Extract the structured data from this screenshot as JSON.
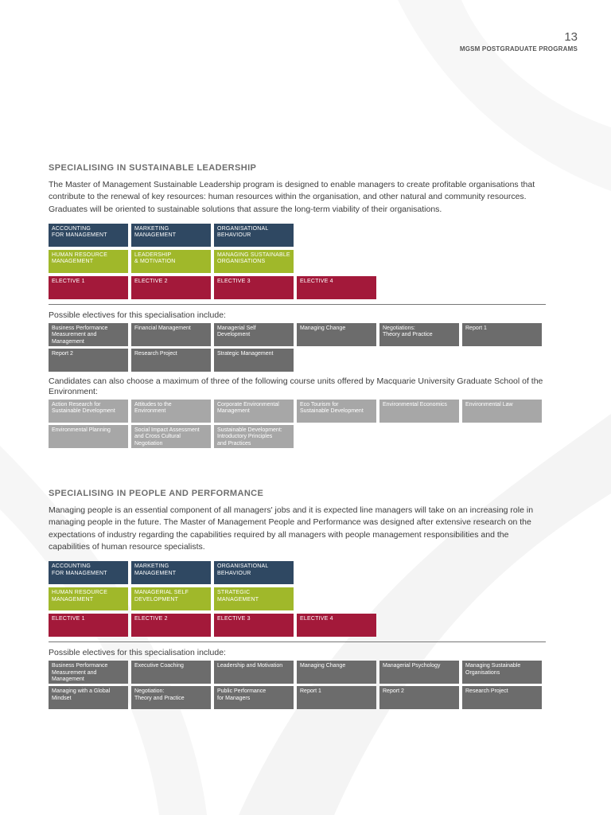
{
  "header": {
    "page_number": "13",
    "program_title": "MGSM POSTGRADUATE PROGRAMS"
  },
  "sustainable": {
    "heading": "SPECIALISING IN SUSTAINABLE LEADERSHIP",
    "paragraph": "The Master of Management Sustainable Leadership program is designed to enable managers to create profitable organisations that contribute to the renewal of key resources: human resources within the organisation, and other natural and community resources. Graduates will be oriented to sustainable solutions that assure the long-term viability of their organisations.",
    "core_rows": [
      [
        "ACCOUNTING\nFOR MANAGEMENT",
        "MARKETING\nMANAGEMENT",
        "ORGANISATIONAL\nBEHAVIOUR"
      ],
      [
        "HUMAN RESOURCE\nMANAGEMENT",
        "LEADERSHIP\n& MOTIVATION",
        "MANAGING SUSTAINABLE\nORGANISATIONS"
      ],
      [
        "ELECTIVE 1",
        "ELECTIVE 2",
        "ELECTIVE 3",
        "ELECTIVE 4"
      ]
    ],
    "electives_intro": "Possible electives for this specialisation include:",
    "electives_rows": [
      [
        "Business Performance\nMeasurement and\nManagement",
        "Financial Management",
        "Managerial Self\nDevelopment",
        "Managing Change",
        "Negotiations:\nTheory and Practice",
        "Report 1"
      ],
      [
        "Report 2",
        "Research Project",
        "Strategic Management"
      ]
    ],
    "env_intro": "Candidates can also choose a maximum of three of the following course units offered by Macquarie University Graduate School of the Environment:",
    "env_rows": [
      [
        "Action Research for\nSustainable Development",
        "Attitudes to the\nEnvironment",
        "Corporate Environmental\nManagement",
        "Eco Tourism for\nSustainable Development",
        "Environmental Economics",
        "Environmental Law"
      ],
      [
        "Environmental Planning",
        "Social Impact Assessment\nand Cross Cultural\nNegotiation",
        "Sustainable Development:\nIntroductory Principles\nand Practices"
      ]
    ]
  },
  "people": {
    "heading": "SPECIALISING IN PEOPLE AND PERFORMANCE",
    "paragraph": "Managing people is an essential component of all managers' jobs and it is expected line managers will take on an increasing role in managing people in the future. The Master of Management People and Performance was designed after extensive research on the expectations of industry regarding the capabilities required by all managers with people management responsibilities and the capabilities of human resource specialists.",
    "core_rows": [
      [
        "ACCOUNTING\nFOR MANAGEMENT",
        "MARKETING\nMANAGEMENT",
        "ORGANISATIONAL\nBEHAVIOUR"
      ],
      [
        "HUMAN RESOURCE\nMANAGEMENT",
        "MANAGERIAL SELF\nDEVELOPMENT",
        "STRATEGIC MANAGEMENT"
      ],
      [
        "ELECTIVE 1",
        "ELECTIVE 2",
        "ELECTIVE 3",
        "ELECTIVE 4"
      ]
    ],
    "electives_intro": "Possible electives for this specialisation include:",
    "electives_rows": [
      [
        "Business Performance\nMeasurement and\nManagement",
        "Executive Coaching",
        "Leadership and Motivation",
        "Managing Change",
        "Managerial Psychology",
        "Managing Sustainable\nOrganisations"
      ],
      [
        "Managing with a Global\nMindset",
        "Negotiation:\nTheory and Practice",
        "Public Performance\nfor Managers",
        "Report 1",
        "Report 2",
        "Research Project"
      ]
    ]
  },
  "colors": {
    "navy": "#2f4862",
    "lime": "#a0b82a",
    "crimson": "#a3193a",
    "dark_grey": "#6c6c6c",
    "light_grey": "#a7a7a7"
  }
}
